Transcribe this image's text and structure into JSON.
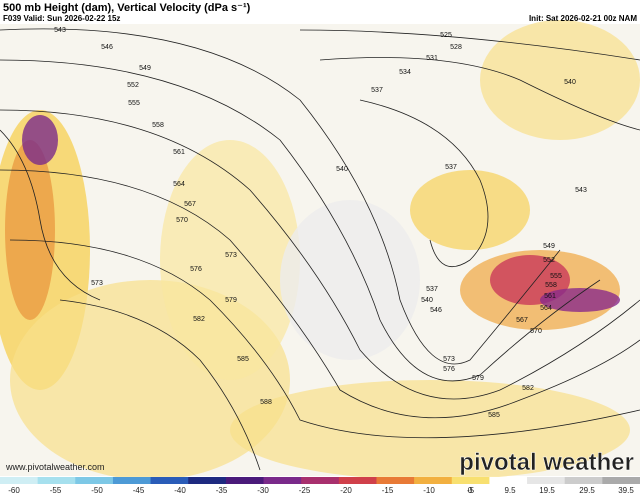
{
  "header": {
    "title": "500 mb Height (dam), Vertical Velocity (dPa s⁻¹)",
    "valid": "F039 Valid: Sun 2026-02-22 15z",
    "init": "Init: Sat 2026-02-21 00z NAM"
  },
  "contour_labels": [
    "543",
    "546",
    "549",
    "552",
    "555",
    "558",
    "561",
    "564",
    "567",
    "570",
    "573",
    "576",
    "573",
    "579",
    "582",
    "585",
    "588",
    "525",
    "528",
    "531",
    "534",
    "537",
    "540",
    "543",
    "537",
    "540",
    "537",
    "540",
    "546",
    "573",
    "576",
    "579",
    "582",
    "585",
    "549",
    "552",
    "555",
    "558",
    "561",
    "564",
    "567",
    "570"
  ],
  "colorbar_ticks": [
    "-60",
    "-55",
    "-50",
    "-45",
    "-40",
    "-35",
    "-30",
    "-25",
    "-20",
    "-15",
    "-10",
    "-5",
    "0",
    "9.5",
    "19.5",
    "29.5",
    "39.5"
  ],
  "footer": {
    "website": "www.pivotalweather.com",
    "logo": "pivotal weather"
  }
}
